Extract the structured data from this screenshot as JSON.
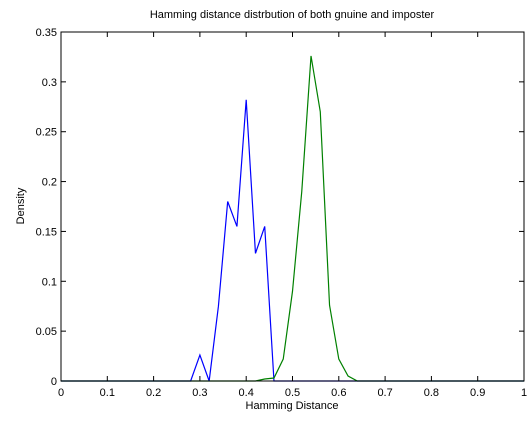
{
  "chart_data": {
    "type": "line",
    "title": "Hamming distance distrbution of both gnuine and imposter",
    "xlabel": "Hamming Distance",
    "ylabel": "Density",
    "xlim": [
      0,
      1
    ],
    "ylim": [
      0,
      0.35
    ],
    "xticks": [
      0,
      0.1,
      0.2,
      0.3,
      0.4,
      0.5,
      0.6,
      0.7,
      0.8,
      0.9,
      1
    ],
    "xtick_labels": [
      "0",
      "0.1",
      "0.2",
      "0.3",
      "0.4",
      "0.5",
      "0.6",
      "0.7",
      "0.8",
      "0.9",
      "1"
    ],
    "yticks": [
      0,
      0.05,
      0.1,
      0.15,
      0.2,
      0.25,
      0.3,
      0.35
    ],
    "ytick_labels": [
      "0",
      "0.05",
      "0.1",
      "0.15",
      "0.2",
      "0.25",
      "0.3",
      "0.35"
    ],
    "grid": false,
    "legend": false,
    "series": [
      {
        "color": "#0000ff",
        "points": [
          [
            0,
            0
          ],
          [
            0.28,
            0
          ],
          [
            0.3,
            0.026
          ],
          [
            0.32,
            0
          ],
          [
            0.34,
            0.075
          ],
          [
            0.36,
            0.18
          ],
          [
            0.38,
            0.155
          ],
          [
            0.4,
            0.282
          ],
          [
            0.42,
            0.128
          ],
          [
            0.44,
            0.155
          ],
          [
            0.46,
            0
          ],
          [
            1,
            0
          ]
        ]
      },
      {
        "color": "#008000",
        "points": [
          [
            0,
            0
          ],
          [
            0.42,
            0
          ],
          [
            0.44,
            0.002
          ],
          [
            0.46,
            0.003
          ],
          [
            0.48,
            0.022
          ],
          [
            0.5,
            0.09
          ],
          [
            0.52,
            0.19
          ],
          [
            0.54,
            0.326
          ],
          [
            0.56,
            0.27
          ],
          [
            0.58,
            0.076
          ],
          [
            0.6,
            0.022
          ],
          [
            0.62,
            0.005
          ],
          [
            0.64,
            0
          ],
          [
            1,
            0
          ]
        ]
      }
    ]
  }
}
